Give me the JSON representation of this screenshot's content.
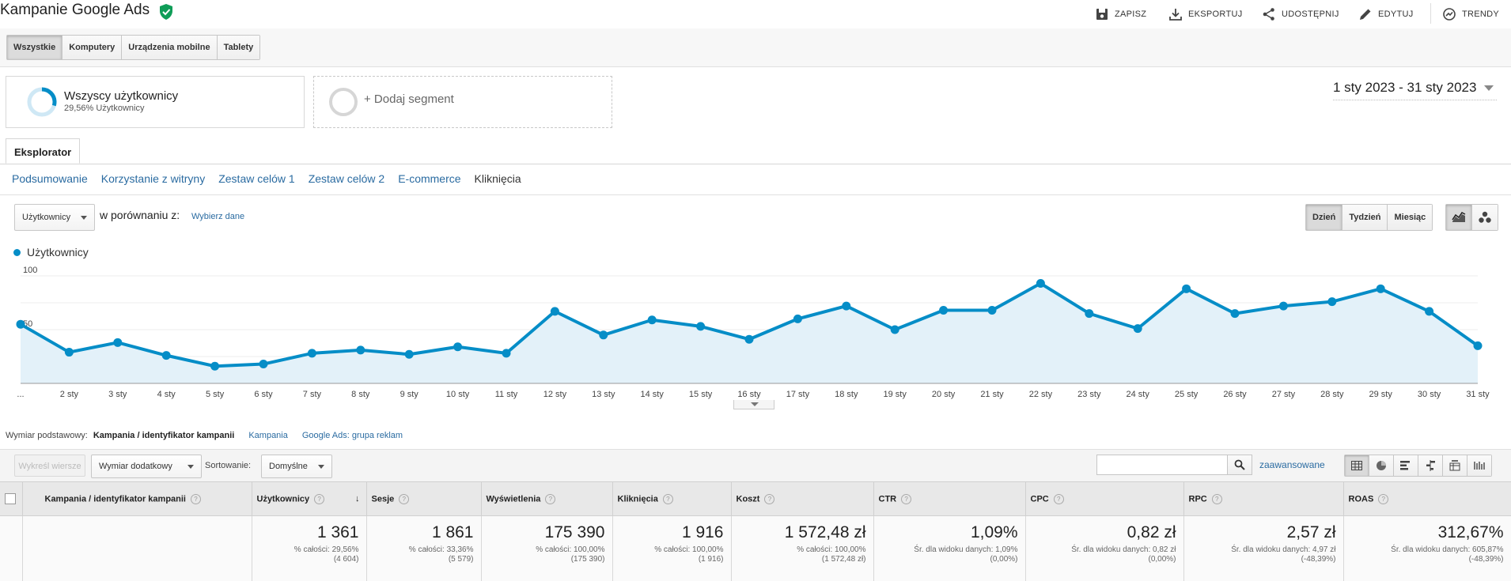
{
  "header": {
    "title": "Kampanie Google Ads",
    "actions": {
      "save": "ZAPISZ",
      "export": "EKSPORTUJ",
      "share": "UDOSTĘPNIJ",
      "edit": "EDYTUJ",
      "insights": "TRENDY"
    }
  },
  "devices": [
    "Wszystkie",
    "Komputery",
    "Urządzenia mobilne",
    "Tablety"
  ],
  "segments": {
    "all_name": "Wszyscy użytkownicy",
    "all_sub": "29,56% Użytkownicy",
    "add_label": "+ Dodaj segment"
  },
  "date_range": "1 sty 2023 - 31 sty 2023",
  "explorer_tab": "Eksplorator",
  "subtabs": [
    "Podsumowanie",
    "Korzystanie z witryny",
    "Zestaw celów 1",
    "Zestaw celów 2",
    "E-commerce",
    "Kliknięcia"
  ],
  "chart_controls": {
    "metric": "Użytkownicy",
    "compare_label": "w porównaniu z:",
    "compare_link": "Wybierz dane",
    "periods": [
      "Dzień",
      "Tydzień",
      "Miesiąc"
    ]
  },
  "chart_data": {
    "type": "area",
    "series": [
      {
        "name": "Użytkownicy",
        "values": [
          55,
          29,
          38,
          26,
          16,
          18,
          28,
          31,
          27,
          34,
          28,
          67,
          45,
          59,
          53,
          41,
          60,
          72,
          50,
          68,
          68,
          93,
          65,
          51,
          88,
          65,
          72,
          76,
          88,
          67,
          35
        ]
      }
    ],
    "categories": [
      "...",
      "2 sty",
      "3 sty",
      "4 sty",
      "5 sty",
      "6 sty",
      "7 sty",
      "8 sty",
      "9 sty",
      "10 sty",
      "11 sty",
      "12 sty",
      "13 sty",
      "14 sty",
      "15 sty",
      "16 sty",
      "17 sty",
      "18 sty",
      "19 sty",
      "20 sty",
      "21 sty",
      "22 sty",
      "23 sty",
      "24 sty",
      "25 sty",
      "26 sty",
      "27 sty",
      "28 sty",
      "29 sty",
      "30 sty",
      "31 sty"
    ],
    "y_ticks": [
      "100",
      "50"
    ],
    "ylim": [
      0,
      100
    ],
    "grid": true,
    "color": "#058dc7",
    "fill": "#e3f1f9"
  },
  "dimension": {
    "label": "Wymiar podstawowy:",
    "selected": "Kampania / identyfikator kampanii",
    "options": [
      "Kampania",
      "Google Ads: grupa reklam"
    ]
  },
  "table_toolbar": {
    "plot_rows": "Wykreśl wiersze",
    "secondary_dimension": "Wymiar dodatkowy",
    "sort_label": "Sortowanie:",
    "sort_value": "Domyślne",
    "search_placeholder": "",
    "advanced": "zaawansowane"
  },
  "table": {
    "columns": [
      "Kampania / identyfikator kampanii",
      "Użytkownicy",
      "Sesje",
      "Wyświetlenia",
      "Kliknięcia",
      "Koszt",
      "CTR",
      "CPC",
      "RPC",
      "ROAS"
    ],
    "totals": [
      {
        "value": "1 361",
        "line1": "% całości: 29,56%",
        "line2": "(4 604)"
      },
      {
        "value": "1 861",
        "line1": "% całości: 33,36%",
        "line2": "(5 579)"
      },
      {
        "value": "175 390",
        "line1": "% całości: 100,00%",
        "line2": "(175 390)"
      },
      {
        "value": "1 916",
        "line1": "% całości: 100,00%",
        "line2": "(1 916)"
      },
      {
        "value": "1 572,48 zł",
        "line1": "% całości: 100,00%",
        "line2": "(1 572,48 zł)"
      },
      {
        "value": "1,09%",
        "line1": "Śr. dla widoku danych: 1,09%",
        "line2": "(0,00%)"
      },
      {
        "value": "0,82 zł",
        "line1": "Śr. dla widoku danych: 0,82 zł",
        "line2": "(0,00%)"
      },
      {
        "value": "2,57 zł",
        "line1": "Śr. dla widoku danych: 4,97 zł",
        "line2": "(-48,39%)"
      },
      {
        "value": "312,67%",
        "line1": "Śr. dla widoku danych: 605,87%",
        "line2": "(-48,39%)"
      }
    ]
  }
}
